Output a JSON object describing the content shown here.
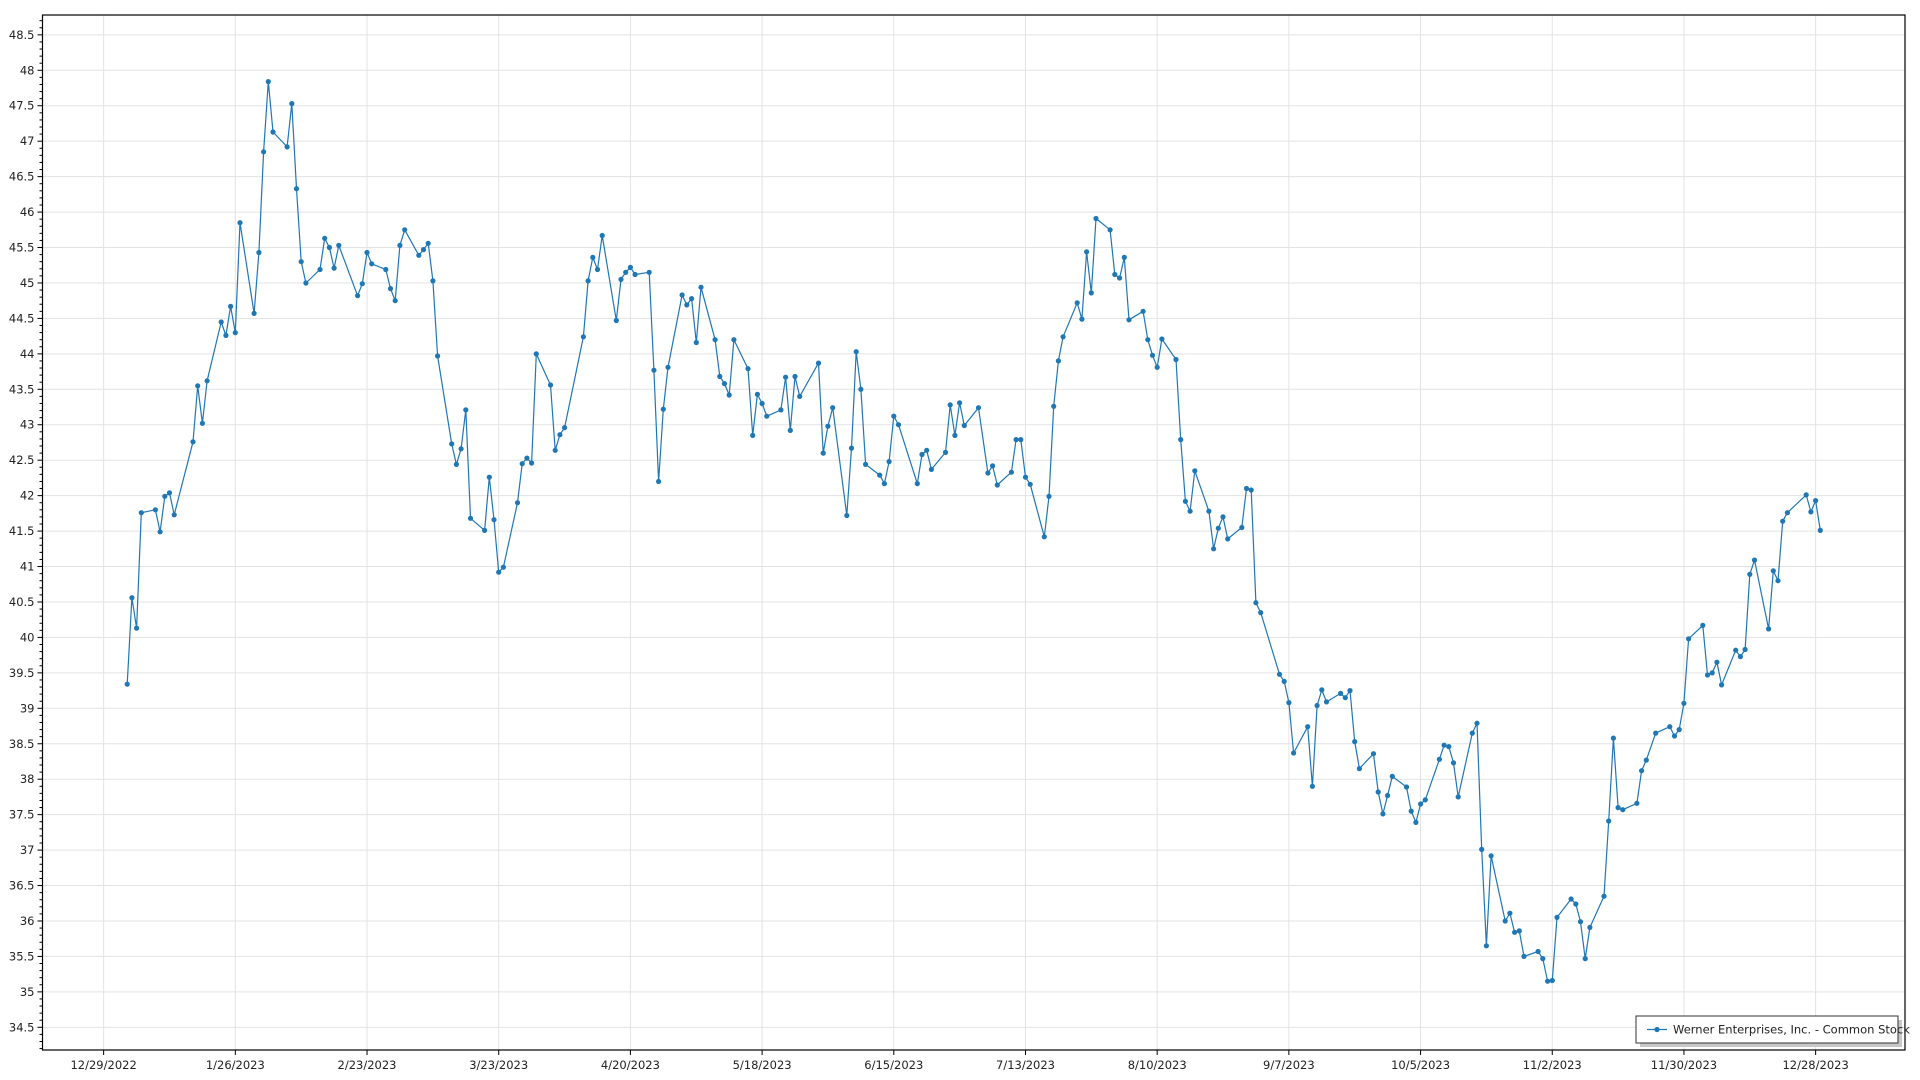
{
  "chart_data": {
    "type": "line",
    "title": "",
    "xlabel": "",
    "ylabel": "",
    "xlim": [
      "2022-12-16",
      "2024-01-16"
    ],
    "ylim": [
      34.18,
      48.78
    ],
    "grid": true,
    "legend_position": "bottom-right",
    "x_ticks": [
      "12/29/2022",
      "1/26/2023",
      "2/23/2023",
      "3/23/2023",
      "4/20/2023",
      "5/18/2023",
      "6/15/2023",
      "7/13/2023",
      "8/10/2023",
      "9/7/2023",
      "10/5/2023",
      "11/2/2023",
      "11/30/2023",
      "12/28/2023"
    ],
    "y_ticks": [
      "34.5",
      "35",
      "35.5",
      "36",
      "36.5",
      "37",
      "37.5",
      "38",
      "38.5",
      "39",
      "39.5",
      "40",
      "40.5",
      "41",
      "41.5",
      "42",
      "42.5",
      "43",
      "43.5",
      "44",
      "44.5",
      "45",
      "45.5",
      "46",
      "46.5",
      "47",
      "47.5",
      "48",
      "48.5"
    ],
    "series": [
      {
        "name": "Werner Enterprises, Inc. - Common Stock",
        "color": "#1f77b4",
        "marker": "circle",
        "points": [
          [
            "2023-01-03",
            39.34
          ],
          [
            "2023-01-04",
            40.56
          ],
          [
            "2023-01-05",
            40.13
          ],
          [
            "2023-01-06",
            41.76
          ],
          [
            "2023-01-09",
            41.8
          ],
          [
            "2023-01-10",
            41.49
          ],
          [
            "2023-01-11",
            41.99
          ],
          [
            "2023-01-12",
            42.04
          ],
          [
            "2023-01-13",
            41.73
          ],
          [
            "2023-01-17",
            42.76
          ],
          [
            "2023-01-18",
            43.55
          ],
          [
            "2023-01-19",
            43.02
          ],
          [
            "2023-01-20",
            43.62
          ],
          [
            "2023-01-23",
            44.45
          ],
          [
            "2023-01-24",
            44.26
          ],
          [
            "2023-01-25",
            44.67
          ],
          [
            "2023-01-26",
            44.3
          ],
          [
            "2023-01-27",
            45.85
          ],
          [
            "2023-01-30",
            44.57
          ],
          [
            "2023-01-31",
            45.43
          ],
          [
            "2023-02-01",
            46.85
          ],
          [
            "2023-02-02",
            47.84
          ],
          [
            "2023-02-03",
            47.13
          ],
          [
            "2023-02-06",
            46.92
          ],
          [
            "2023-02-07",
            47.53
          ],
          [
            "2023-02-08",
            46.33
          ],
          [
            "2023-02-09",
            45.3
          ],
          [
            "2023-02-10",
            45.0
          ],
          [
            "2023-02-13",
            45.19
          ],
          [
            "2023-02-14",
            45.63
          ],
          [
            "2023-02-15",
            45.5
          ],
          [
            "2023-02-16",
            45.21
          ],
          [
            "2023-02-17",
            45.53
          ],
          [
            "2023-02-21",
            44.82
          ],
          [
            "2023-02-22",
            44.99
          ],
          [
            "2023-02-23",
            45.43
          ],
          [
            "2023-02-24",
            45.27
          ],
          [
            "2023-02-27",
            45.19
          ],
          [
            "2023-02-28",
            44.92
          ],
          [
            "2023-03-01",
            44.75
          ],
          [
            "2023-03-02",
            45.53
          ],
          [
            "2023-03-03",
            45.75
          ],
          [
            "2023-03-06",
            45.39
          ],
          [
            "2023-03-07",
            45.47
          ],
          [
            "2023-03-08",
            45.56
          ],
          [
            "2023-03-09",
            45.03
          ],
          [
            "2023-03-10",
            43.97
          ],
          [
            "2023-03-13",
            42.73
          ],
          [
            "2023-03-14",
            42.44
          ],
          [
            "2023-03-15",
            42.66
          ],
          [
            "2023-03-16",
            43.21
          ],
          [
            "2023-03-17",
            41.68
          ],
          [
            "2023-03-20",
            41.51
          ],
          [
            "2023-03-21",
            42.26
          ],
          [
            "2023-03-22",
            41.66
          ],
          [
            "2023-03-23",
            40.92
          ],
          [
            "2023-03-24",
            40.99
          ],
          [
            "2023-03-27",
            41.9
          ],
          [
            "2023-03-28",
            42.45
          ],
          [
            "2023-03-29",
            42.53
          ],
          [
            "2023-03-30",
            42.46
          ],
          [
            "2023-03-31",
            44.0
          ],
          [
            "2023-04-03",
            43.56
          ],
          [
            "2023-04-04",
            42.64
          ],
          [
            "2023-04-05",
            42.86
          ],
          [
            "2023-04-06",
            42.96
          ],
          [
            "2023-04-10",
            44.24
          ],
          [
            "2023-04-11",
            45.03
          ],
          [
            "2023-04-12",
            45.36
          ],
          [
            "2023-04-13",
            45.19
          ],
          [
            "2023-04-14",
            45.67
          ],
          [
            "2023-04-17",
            44.47
          ],
          [
            "2023-04-18",
            45.05
          ],
          [
            "2023-04-19",
            45.15
          ],
          [
            "2023-04-20",
            45.22
          ],
          [
            "2023-04-21",
            45.12
          ],
          [
            "2023-04-24",
            45.15
          ],
          [
            "2023-04-25",
            43.77
          ],
          [
            "2023-04-26",
            42.2
          ],
          [
            "2023-04-27",
            43.22
          ],
          [
            "2023-04-28",
            43.81
          ],
          [
            "2023-05-01",
            44.83
          ],
          [
            "2023-05-02",
            44.69
          ],
          [
            "2023-05-03",
            44.78
          ],
          [
            "2023-05-04",
            44.16
          ],
          [
            "2023-05-05",
            44.94
          ],
          [
            "2023-05-08",
            44.2
          ],
          [
            "2023-05-09",
            43.68
          ],
          [
            "2023-05-10",
            43.58
          ],
          [
            "2023-05-11",
            43.42
          ],
          [
            "2023-05-12",
            44.2
          ],
          [
            "2023-05-15",
            43.79
          ],
          [
            "2023-05-16",
            42.85
          ],
          [
            "2023-05-17",
            43.43
          ],
          [
            "2023-05-18",
            43.3
          ],
          [
            "2023-05-19",
            43.12
          ],
          [
            "2023-05-22",
            43.21
          ],
          [
            "2023-05-23",
            43.67
          ],
          [
            "2023-05-24",
            42.92
          ],
          [
            "2023-05-25",
            43.68
          ],
          [
            "2023-05-26",
            43.4
          ],
          [
            "2023-05-30",
            43.87
          ],
          [
            "2023-05-31",
            42.6
          ],
          [
            "2023-06-01",
            42.98
          ],
          [
            "2023-06-02",
            43.24
          ],
          [
            "2023-06-05",
            41.72
          ],
          [
            "2023-06-06",
            42.67
          ],
          [
            "2023-06-07",
            44.03
          ],
          [
            "2023-06-08",
            43.5
          ],
          [
            "2023-06-09",
            42.44
          ],
          [
            "2023-06-12",
            42.29
          ],
          [
            "2023-06-13",
            42.17
          ],
          [
            "2023-06-14",
            42.48
          ],
          [
            "2023-06-15",
            43.12
          ],
          [
            "2023-06-16",
            43.0
          ],
          [
            "2023-06-20",
            42.17
          ],
          [
            "2023-06-21",
            42.58
          ],
          [
            "2023-06-22",
            42.64
          ],
          [
            "2023-06-23",
            42.37
          ],
          [
            "2023-06-26",
            42.61
          ],
          [
            "2023-06-27",
            43.28
          ],
          [
            "2023-06-28",
            42.85
          ],
          [
            "2023-06-29",
            43.31
          ],
          [
            "2023-06-30",
            42.99
          ],
          [
            "2023-07-03",
            43.24
          ],
          [
            "2023-07-05",
            42.32
          ],
          [
            "2023-07-06",
            42.42
          ],
          [
            "2023-07-07",
            42.15
          ],
          [
            "2023-07-10",
            42.33
          ],
          [
            "2023-07-11",
            42.79
          ],
          [
            "2023-07-12",
            42.79
          ],
          [
            "2023-07-13",
            42.26
          ],
          [
            "2023-07-14",
            42.16
          ],
          [
            "2023-07-17",
            41.42
          ],
          [
            "2023-07-18",
            41.99
          ],
          [
            "2023-07-19",
            43.26
          ],
          [
            "2023-07-20",
            43.9
          ],
          [
            "2023-07-21",
            44.24
          ],
          [
            "2023-07-24",
            44.72
          ],
          [
            "2023-07-25",
            44.49
          ],
          [
            "2023-07-26",
            45.44
          ],
          [
            "2023-07-27",
            44.86
          ],
          [
            "2023-07-28",
            45.91
          ],
          [
            "2023-07-31",
            45.75
          ],
          [
            "2023-08-01",
            45.12
          ],
          [
            "2023-08-02",
            45.07
          ],
          [
            "2023-08-03",
            45.36
          ],
          [
            "2023-08-04",
            44.48
          ],
          [
            "2023-08-07",
            44.6
          ],
          [
            "2023-08-08",
            44.2
          ],
          [
            "2023-08-09",
            43.98
          ],
          [
            "2023-08-10",
            43.81
          ],
          [
            "2023-08-11",
            44.21
          ],
          [
            "2023-08-14",
            43.92
          ],
          [
            "2023-08-15",
            42.79
          ],
          [
            "2023-08-16",
            41.92
          ],
          [
            "2023-08-17",
            41.78
          ],
          [
            "2023-08-18",
            42.35
          ],
          [
            "2023-08-21",
            41.78
          ],
          [
            "2023-08-22",
            41.25
          ],
          [
            "2023-08-23",
            41.54
          ],
          [
            "2023-08-24",
            41.7
          ],
          [
            "2023-08-25",
            41.39
          ],
          [
            "2023-08-28",
            41.55
          ],
          [
            "2023-08-29",
            42.1
          ],
          [
            "2023-08-30",
            42.08
          ],
          [
            "2023-08-31",
            40.49
          ],
          [
            "2023-09-01",
            40.35
          ],
          [
            "2023-09-05",
            39.48
          ],
          [
            "2023-09-06",
            39.38
          ],
          [
            "2023-09-07",
            39.08
          ],
          [
            "2023-09-08",
            38.37
          ],
          [
            "2023-09-11",
            38.74
          ],
          [
            "2023-09-12",
            37.9
          ],
          [
            "2023-09-13",
            39.04
          ],
          [
            "2023-09-14",
            39.26
          ],
          [
            "2023-09-15",
            39.09
          ],
          [
            "2023-09-18",
            39.21
          ],
          [
            "2023-09-19",
            39.15
          ],
          [
            "2023-09-20",
            39.25
          ],
          [
            "2023-09-21",
            38.53
          ],
          [
            "2023-09-22",
            38.15
          ],
          [
            "2023-09-25",
            38.36
          ],
          [
            "2023-09-26",
            37.82
          ],
          [
            "2023-09-27",
            37.51
          ],
          [
            "2023-09-28",
            37.77
          ],
          [
            "2023-09-29",
            38.04
          ],
          [
            "2023-10-02",
            37.89
          ],
          [
            "2023-10-03",
            37.55
          ],
          [
            "2023-10-04",
            37.39
          ],
          [
            "2023-10-05",
            37.65
          ],
          [
            "2023-10-06",
            37.71
          ],
          [
            "2023-10-09",
            38.28
          ],
          [
            "2023-10-10",
            38.48
          ],
          [
            "2023-10-11",
            38.46
          ],
          [
            "2023-10-12",
            38.23
          ],
          [
            "2023-10-13",
            37.75
          ],
          [
            "2023-10-16",
            38.65
          ],
          [
            "2023-10-17",
            38.79
          ],
          [
            "2023-10-18",
            37.01
          ],
          [
            "2023-10-19",
            35.65
          ],
          [
            "2023-10-20",
            36.92
          ],
          [
            "2023-10-23",
            36.0
          ],
          [
            "2023-10-24",
            36.11
          ],
          [
            "2023-10-25",
            35.84
          ],
          [
            "2023-10-26",
            35.86
          ],
          [
            "2023-10-27",
            35.5
          ],
          [
            "2023-10-30",
            35.57
          ],
          [
            "2023-10-31",
            35.47
          ],
          [
            "2023-11-01",
            35.15
          ],
          [
            "2023-11-02",
            35.16
          ],
          [
            "2023-11-03",
            36.05
          ],
          [
            "2023-11-06",
            36.31
          ],
          [
            "2023-11-07",
            36.24
          ],
          [
            "2023-11-08",
            35.99
          ],
          [
            "2023-11-09",
            35.47
          ],
          [
            "2023-11-10",
            35.91
          ],
          [
            "2023-11-13",
            36.35
          ],
          [
            "2023-11-14",
            37.41
          ],
          [
            "2023-11-15",
            38.58
          ],
          [
            "2023-11-16",
            37.6
          ],
          [
            "2023-11-17",
            37.57
          ],
          [
            "2023-11-20",
            37.66
          ],
          [
            "2023-11-21",
            38.12
          ],
          [
            "2023-11-22",
            38.27
          ],
          [
            "2023-11-24",
            38.65
          ],
          [
            "2023-11-27",
            38.74
          ],
          [
            "2023-11-28",
            38.61
          ],
          [
            "2023-11-29",
            38.7
          ],
          [
            "2023-11-30",
            39.07
          ],
          [
            "2023-12-01",
            39.98
          ],
          [
            "2023-12-04",
            40.17
          ],
          [
            "2023-12-05",
            39.47
          ],
          [
            "2023-12-06",
            39.5
          ],
          [
            "2023-12-07",
            39.65
          ],
          [
            "2023-12-08",
            39.33
          ],
          [
            "2023-12-11",
            39.82
          ],
          [
            "2023-12-12",
            39.73
          ],
          [
            "2023-12-13",
            39.83
          ],
          [
            "2023-12-14",
            40.89
          ],
          [
            "2023-12-15",
            41.09
          ],
          [
            "2023-12-18",
            40.12
          ],
          [
            "2023-12-19",
            40.94
          ],
          [
            "2023-12-20",
            40.8
          ],
          [
            "2023-12-21",
            41.64
          ],
          [
            "2023-12-22",
            41.76
          ],
          [
            "2023-12-26",
            42.01
          ],
          [
            "2023-12-27",
            41.77
          ],
          [
            "2023-12-28",
            41.93
          ],
          [
            "2023-12-29",
            41.51
          ]
        ]
      }
    ]
  }
}
